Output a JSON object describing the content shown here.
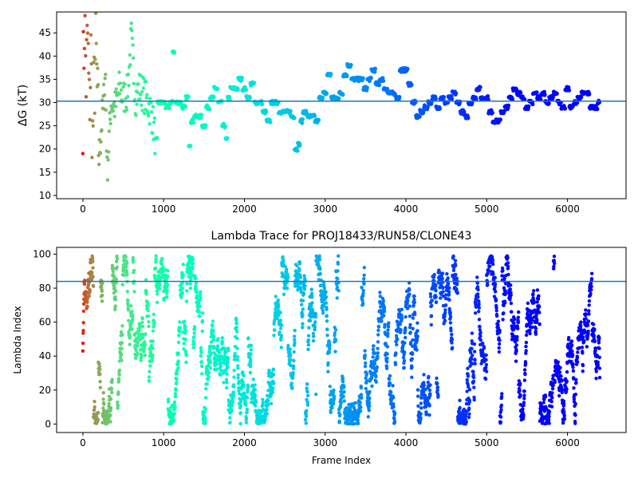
{
  "chart_data": [
    {
      "type": "scatter",
      "title": "",
      "xlabel": "",
      "ylabel": "ΔG (kT)",
      "xlim": [
        -325,
        6725
      ],
      "ylim": [
        9.3,
        49.5
      ],
      "xticks": [
        0,
        1000,
        2000,
        3000,
        4000,
        5000,
        6000
      ],
      "yticks": [
        10,
        15,
        20,
        25,
        30,
        35,
        40,
        45
      ],
      "reference_line": 30.3,
      "reference_color": "#1f77b4",
      "colormap": "rainbow (red at frame 0 → violet at last frame)",
      "series": [
        {
          "points_x": [
            0,
            20,
            40,
            60,
            80,
            100,
            120,
            140,
            160,
            200,
            240,
            280,
            300,
            350,
            400,
            450,
            500,
            550,
            600,
            650,
            700,
            750,
            800,
            850,
            900,
            950,
            1000,
            1050,
            1100,
            1120,
            1150,
            1200,
            1250,
            1300,
            1320,
            1350,
            1400,
            1450,
            1500,
            1550,
            1600,
            1650,
            1700,
            1750,
            1780,
            1800,
            1850,
            1900,
            1950,
            2000,
            2050,
            2100,
            2150,
            2200,
            2250,
            2300,
            2350,
            2400,
            2450,
            2500,
            2550,
            2600,
            2640,
            2680,
            2700,
            2750,
            2800,
            2850,
            2900,
            2950,
            3000,
            3050,
            3100,
            3150,
            3200,
            3250,
            3300,
            3350,
            3400,
            3450,
            3500,
            3550,
            3600,
            3650,
            3700,
            3750,
            3800,
            3850,
            3900,
            3950,
            4000,
            4050,
            4100,
            4150,
            4200,
            4250,
            4300,
            4350,
            4400,
            4450,
            4500,
            4550,
            4600,
            4650,
            4700,
            4750,
            4800,
            4850,
            4900,
            4950,
            5000,
            5050,
            5100,
            5150,
            5200,
            5250,
            5300,
            5350,
            5400,
            5450,
            5500,
            5550,
            5600,
            5650,
            5700,
            5750,
            5800,
            5850,
            5900,
            5950,
            6000,
            6050,
            6100,
            6150,
            6200,
            6250,
            6300,
            6350,
            6400
          ],
          "points_y": [
            30,
            48,
            35,
            44,
            28,
            40,
            22,
            33,
            42,
            18,
            27,
            36,
            15,
            30,
            29,
            33,
            31,
            32,
            44,
            31,
            33,
            32,
            30,
            28,
            22,
            30,
            30,
            29,
            30,
            41,
            30,
            30,
            29,
            31,
            21,
            26,
            27,
            27,
            25,
            29,
            31,
            33,
            30,
            25,
            22,
            31,
            33,
            33,
            35,
            33,
            31,
            34,
            30,
            30,
            28,
            26,
            30,
            30,
            28,
            28,
            28,
            27,
            20,
            21,
            26,
            28,
            27,
            27,
            26,
            31,
            32,
            36,
            31,
            31,
            32,
            36,
            38,
            35,
            35,
            35,
            33,
            35,
            37,
            34,
            35,
            33,
            32,
            32,
            31,
            37,
            37,
            34,
            30,
            27,
            28,
            29,
            30,
            31,
            29,
            31,
            30,
            31,
            32,
            30,
            28,
            27,
            30,
            31,
            33,
            31,
            31,
            28,
            26,
            26,
            28,
            29,
            31,
            33,
            32,
            31,
            29,
            30,
            32,
            31,
            32,
            30,
            31,
            32,
            30,
            29,
            33,
            29,
            30,
            31,
            32,
            32,
            29,
            29,
            30,
            29.5
          ]
        }
      ]
    },
    {
      "type": "scatter",
      "title": "Lambda Trace for PROJ18433/RUN58/CLONE43",
      "xlabel": "Frame Index",
      "ylabel": "Lambda Index",
      "xlim": [
        -325,
        6725
      ],
      "ylim": [
        -5,
        104
      ],
      "xticks": [
        0,
        1000,
        2000,
        3000,
        4000,
        5000,
        6000
      ],
      "yticks": [
        0,
        20,
        40,
        60,
        80,
        100
      ],
      "reference_line": 84,
      "reference_color": "#1f77b4",
      "colormap": "rainbow (red at frame 0 → violet at last frame)",
      "value_range": [
        0,
        99
      ],
      "frame_count": 6400
    }
  ]
}
